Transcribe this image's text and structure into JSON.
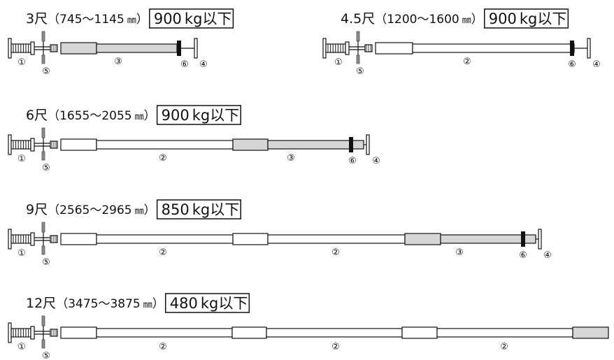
{
  "colors": {
    "line": "#111111",
    "pipe_white": "#ffffff",
    "pipe_gray": "#d6d6d6",
    "band_black": "#111111",
    "bolt_gray": "#8a8a8a"
  },
  "icons": [
    "screw-handle-icon",
    "wing-bolt-icon",
    "end-cap-plate-icon"
  ],
  "rows": [
    {
      "size": "3尺",
      "range_open": "（",
      "range": "745～1145",
      "unit": "㎜",
      "range_close": "）",
      "load": "900",
      "load_unit": "kg以下",
      "parts": [
        {
          "type": "gray",
          "label": ""
        },
        {
          "type": "gray",
          "label": "③"
        }
      ],
      "labels": {
        "handle": "①",
        "bolt": "⑤",
        "band": "⑥",
        "cap": "④"
      }
    },
    {
      "size": "4.5尺",
      "range_open": "（",
      "range": "1200～1600",
      "unit": "㎜",
      "range_close": "）",
      "load": "900",
      "load_unit": "kg以下",
      "parts": [
        {
          "type": "white",
          "label": ""
        },
        {
          "type": "white",
          "label": "②"
        }
      ],
      "labels": {
        "handle": "①",
        "bolt": "⑤",
        "band": "⑥",
        "cap": "④"
      }
    },
    {
      "size": "6尺",
      "range_open": "（",
      "range": "1655～2055",
      "unit": "㎜",
      "range_close": "）",
      "load": "900",
      "load_unit": "kg以下",
      "parts": [
        {
          "type": "white",
          "label": ""
        },
        {
          "type": "white",
          "label": "②"
        },
        {
          "type": "gray",
          "label": ""
        },
        {
          "type": "gray",
          "label": "③"
        }
      ],
      "labels": {
        "handle": "①",
        "bolt": "⑤",
        "band": "⑥",
        "cap": "④"
      }
    },
    {
      "size": "9尺",
      "range_open": "（",
      "range": "2565～2965",
      "unit": "㎜",
      "range_close": "）",
      "load": "850",
      "load_unit": "kg以下",
      "parts": [
        {
          "type": "white",
          "label": ""
        },
        {
          "type": "white",
          "label": "②"
        },
        {
          "type": "white",
          "label": ""
        },
        {
          "type": "white",
          "label": "②"
        },
        {
          "type": "gray",
          "label": ""
        },
        {
          "type": "gray",
          "label": "③"
        }
      ],
      "labels": {
        "handle": "①",
        "bolt": "⑤",
        "band": "⑥",
        "cap": "④"
      }
    },
    {
      "size": "12尺",
      "range_open": "（",
      "range": "3475～3875",
      "unit": "㎜",
      "range_close": "）",
      "load": "480",
      "load_unit": "kg以下",
      "parts": [
        {
          "type": "white",
          "label": ""
        },
        {
          "type": "white",
          "label": "②"
        },
        {
          "type": "white",
          "label": ""
        },
        {
          "type": "white",
          "label": "②"
        },
        {
          "type": "white",
          "label": ""
        },
        {
          "type": "white",
          "label": "②"
        },
        {
          "type": "gray",
          "label": ""
        }
      ],
      "labels": {
        "handle": "①",
        "bolt": "⑤"
      }
    }
  ]
}
